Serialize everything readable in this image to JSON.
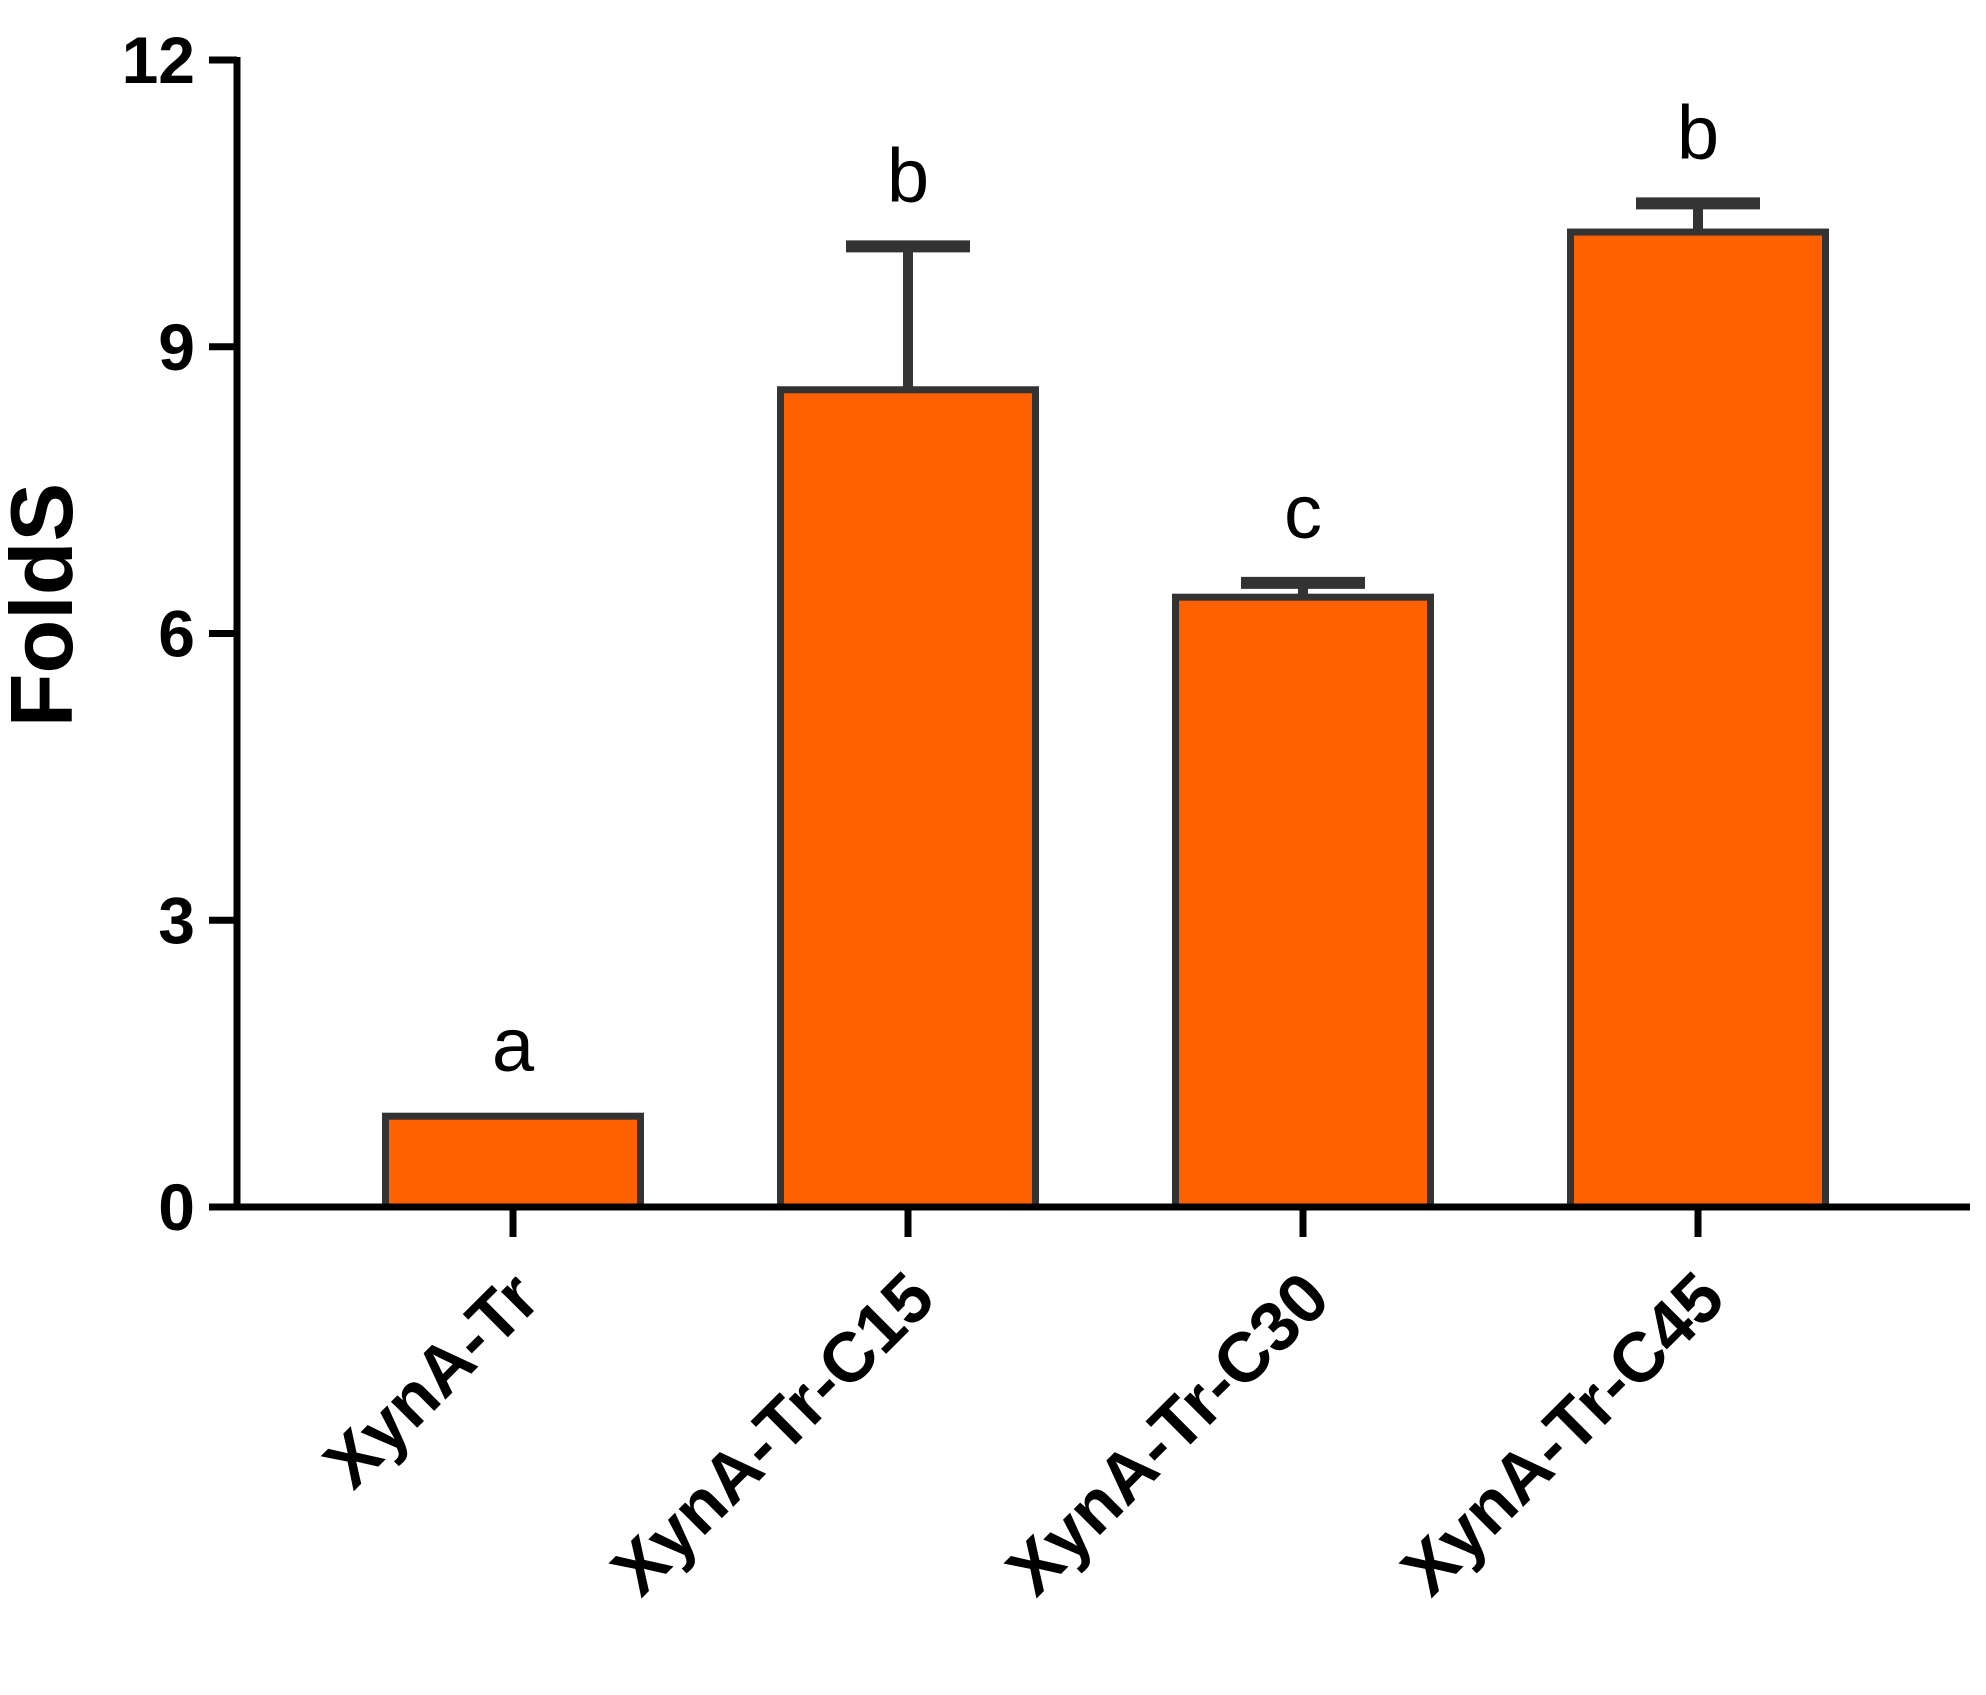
{
  "chart_data": {
    "type": "bar",
    "categories": [
      "XynA-Tr",
      "XynA-Tr-C15",
      "XynA-Tr-C30",
      "XynA-Tr-C45"
    ],
    "values": [
      0.95,
      8.55,
      6.38,
      10.2
    ],
    "errors": [
      0.0,
      1.5,
      0.15,
      0.3
    ],
    "significance_letters": [
      "a",
      "b",
      "c",
      "b"
    ],
    "xlabel": "",
    "ylabel": "FoldS",
    "ylim": [
      0,
      12
    ],
    "yticks": [
      0,
      3,
      6,
      9,
      12
    ],
    "grid": false,
    "legend": "none",
    "bar_color": "#FF6000",
    "edge_color": "#333333"
  }
}
